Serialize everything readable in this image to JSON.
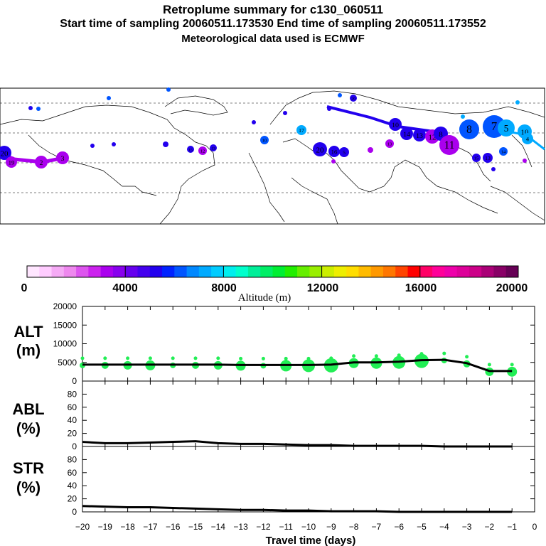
{
  "header": {
    "title": "Retroplume summary for c130_060511",
    "sampling": "Start time of sampling 20060511.173530     End time of sampling 20060511.173552",
    "met": "Meteorological data used is ECMWF"
  },
  "colorbar": {
    "label": "Altitude (m)",
    "ticks": [
      "0",
      "4000",
      "8000",
      "12000",
      "16000",
      "20000"
    ],
    "colors": [
      "#ffe6ff",
      "#ffccff",
      "#f5aaf5",
      "#ee88ee",
      "#dd55ee",
      "#cc22ee",
      "#aa00ee",
      "#8800ee",
      "#6600ee",
      "#4400ee",
      "#2200ee",
      "#0022ff",
      "#0055ff",
      "#0088ff",
      "#00aaff",
      "#00ccff",
      "#00eeee",
      "#00ffcc",
      "#00ee99",
      "#00ee66",
      "#00ee33",
      "#22ee00",
      "#66ee00",
      "#99ee00",
      "#ccee00",
      "#eeee00",
      "#ffdd00",
      "#ffbb00",
      "#ff9900",
      "#ff7700",
      "#ff4400",
      "#ff0000",
      "#ff0066",
      "#ff0099",
      "#ee00aa",
      "#dd0099",
      "#cc0088",
      "#aa0077",
      "#880066",
      "#660055"
    ]
  },
  "map": {
    "labels": [
      "1",
      "2",
      "3",
      "4",
      "5",
      "6",
      "7",
      "8",
      "9",
      "10",
      "11",
      "12",
      "13",
      "14",
      "15",
      "16",
      "17",
      "18",
      "19",
      "20"
    ],
    "colors": {
      "deep": "#5500dd",
      "mid": "#2200ee",
      "blue": "#0055ff",
      "light": "#00aaff",
      "purple": "#aa00ee"
    }
  },
  "chart_data": [
    {
      "type": "line",
      "panel": "ALT",
      "ylabel": "ALT\n(m)",
      "ylabel_lines": [
        "ALT",
        "(m)"
      ],
      "ylim": [
        0,
        20000
      ],
      "yticks": [
        "0",
        "5000",
        "10000",
        "15000",
        "20000"
      ],
      "x": [
        -20,
        -19,
        -18,
        -17,
        -16,
        -15,
        -14,
        -13,
        -12,
        -11,
        -10,
        -9,
        -8,
        -7,
        -6,
        -5,
        -4,
        -3,
        -2,
        -1
      ],
      "values": [
        4400,
        4400,
        4400,
        4400,
        4400,
        4400,
        4400,
        4300,
        4300,
        4300,
        4300,
        4400,
        5000,
        5000,
        5200,
        5600,
        5700,
        4800,
        2700,
        2700
      ]
    },
    {
      "type": "line",
      "panel": "ABL",
      "ylabel": "ABL\n(%)",
      "ylabel_lines": [
        "ABL",
        "(%)"
      ],
      "ylim": [
        0,
        100
      ],
      "yticks": [
        "0",
        "20",
        "40",
        "60",
        "80"
      ],
      "x": [
        -20,
        -19,
        -18,
        -17,
        -16,
        -15,
        -14,
        -13,
        -12,
        -11,
        -10,
        -9,
        -8,
        -7,
        -6,
        -5,
        -4,
        -3,
        -2,
        -1
      ],
      "values": [
        7,
        5,
        5,
        6,
        7,
        8,
        5,
        4,
        4,
        3,
        2,
        2,
        1,
        1,
        1,
        1,
        0,
        0,
        0,
        0
      ]
    },
    {
      "type": "line",
      "panel": "STR",
      "ylabel": "STR\n(%)",
      "ylabel_lines": [
        "STR",
        "(%)"
      ],
      "ylim": [
        0,
        100
      ],
      "yticks": [
        "0",
        "20",
        "40",
        "60",
        "80"
      ],
      "x": [
        -20,
        -19,
        -18,
        -17,
        -16,
        -15,
        -14,
        -13,
        -12,
        -11,
        -10,
        -9,
        -8,
        -7,
        -6,
        -5,
        -4,
        -3,
        -2,
        -1
      ],
      "values": [
        9,
        8,
        7,
        7,
        6,
        5,
        4,
        3,
        3,
        2,
        2,
        1,
        1,
        1,
        0,
        0,
        0,
        0,
        0,
        0
      ]
    }
  ],
  "xaxis": {
    "label": "Travel time (days)",
    "ticks": [
      "−20",
      "−19",
      "−18",
      "−17",
      "−16",
      "−15",
      "−14",
      "−13",
      "−12",
      "−11",
      "−10",
      "−9",
      "−8",
      "−7",
      "−6",
      "−5",
      "−4",
      "−3",
      "−2",
      "−1",
      "0"
    ]
  }
}
